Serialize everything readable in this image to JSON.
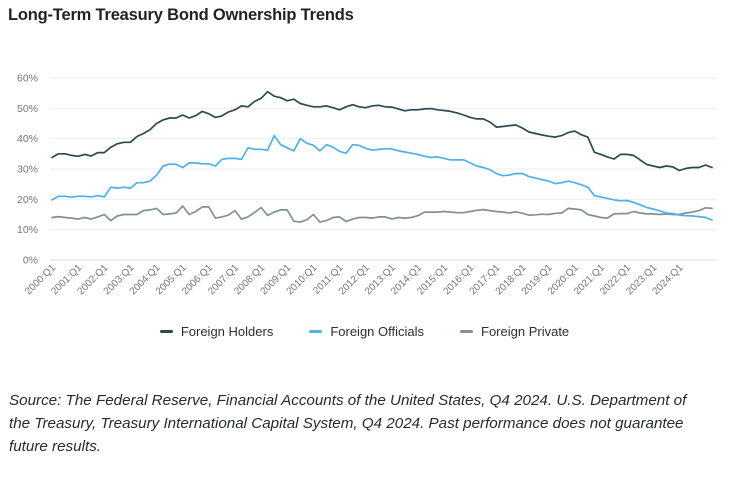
{
  "title": "Long-Term Treasury Bond Ownership Trends",
  "source_note": "Source: The Federal Reserve, Financial Accounts of the United States, Q4 2024. U.S. Department of the Treasury, Treasury International Capital System, Q4 2024. Past performance does not guarantee future results.",
  "chart_data": {
    "type": "line",
    "title": "Long-Term Treasury Bond Ownership Trends",
    "xlabel": "",
    "ylabel": "",
    "ylim": [
      0,
      60
    ],
    "y_ticks": [
      "0%",
      "10%",
      "20%",
      "30%",
      "40%",
      "50%",
      "60%"
    ],
    "x_tick_labels": [
      "2000:Q1",
      "2001:Q1",
      "2002:Q1",
      "2003:Q1",
      "2004:Q1",
      "2005:Q1",
      "2006:Q1",
      "2007:Q1",
      "2008:Q1",
      "2009:Q1",
      "2010:Q1",
      "2011:Q1",
      "2012:Q1",
      "2013:Q1",
      "2014:Q1",
      "2015:Q1",
      "2016:Q1",
      "2017:Q1",
      "2018:Q1",
      "2019:Q1",
      "2020:Q1",
      "2021:Q1",
      "2022:Q1",
      "2023:Q1",
      "2024:Q1"
    ],
    "x_start_year": 2000,
    "grid": "horizontal",
    "legend_position": "bottom",
    "series": [
      {
        "name": "Foreign Holders",
        "color": "#2d4a4f",
        "values": [
          33.8,
          35.0,
          35.0,
          34.5,
          34.2,
          34.8,
          34.3,
          35.4,
          35.4,
          37.2,
          38.3,
          38.8,
          38.8,
          40.7,
          41.7,
          43.0,
          45.0,
          46.2,
          46.8,
          46.8,
          47.8,
          46.8,
          47.6,
          49.0,
          48.2,
          47.0,
          47.5,
          48.8,
          49.5,
          50.8,
          50.5,
          52.3,
          53.3,
          55.5,
          54.0,
          53.5,
          52.5,
          53.0,
          51.6,
          51.0,
          50.5,
          50.5,
          50.8,
          50.2,
          49.5,
          50.5,
          51.2,
          50.5,
          50.2,
          50.8,
          51.0,
          50.5,
          50.4,
          49.8,
          49.2,
          49.5,
          49.5,
          49.8,
          49.9,
          49.5,
          49.3,
          49.0,
          48.5,
          47.8,
          47.0,
          46.5,
          46.5,
          45.5,
          43.8,
          44.0,
          44.3,
          44.5,
          43.5,
          42.2,
          41.7,
          41.2,
          40.8,
          40.5,
          41.0,
          42.0,
          42.5,
          41.3,
          40.5,
          35.5,
          34.8,
          34.0,
          33.3,
          34.8,
          34.8,
          34.5,
          33.0,
          31.5,
          31.0,
          30.5,
          31.0,
          30.7,
          29.5,
          30.2,
          30.5,
          30.5,
          31.3,
          30.5
        ]
      },
      {
        "name": "Foreign Officials",
        "color": "#4fb0ea",
        "values": [
          19.8,
          21.0,
          21.0,
          20.7,
          21.0,
          21.0,
          20.8,
          21.2,
          20.8,
          24.0,
          23.7,
          24.0,
          23.7,
          25.5,
          25.5,
          26.0,
          28.0,
          31.0,
          31.6,
          31.5,
          30.5,
          32.0,
          32.0,
          31.7,
          31.7,
          31.0,
          33.2,
          33.5,
          33.5,
          33.2,
          37.0,
          36.5,
          36.5,
          36.2,
          41.0,
          38.0,
          37.0,
          36.0,
          40.0,
          38.5,
          37.8,
          36.0,
          38.0,
          37.2,
          35.8,
          35.2,
          38.0,
          37.8,
          36.8,
          36.2,
          36.5,
          36.7,
          36.6,
          36.0,
          35.6,
          35.2,
          34.8,
          34.2,
          33.8,
          34.0,
          33.5,
          33.0,
          33.0,
          33.0,
          32.0,
          31.0,
          30.5,
          29.8,
          28.5,
          27.8,
          28.0,
          28.5,
          28.5,
          27.5,
          27.0,
          26.5,
          26.0,
          25.2,
          25.5,
          26.0,
          25.5,
          24.8,
          24.0,
          21.2,
          20.8,
          20.3,
          19.8,
          19.5,
          19.6,
          19.0,
          18.2,
          17.3,
          16.8,
          16.2,
          15.5,
          15.3,
          14.8,
          14.6,
          14.5,
          14.3,
          14.0,
          13.2
        ]
      },
      {
        "name": "Foreign Private",
        "color": "#83918f",
        "values": [
          14.0,
          14.3,
          14.0,
          13.8,
          13.5,
          14.0,
          13.5,
          14.2,
          15.0,
          13.0,
          14.5,
          15.0,
          15.0,
          15.0,
          16.3,
          16.5,
          17.0,
          15.0,
          15.2,
          15.5,
          17.8,
          15.0,
          16.0,
          17.5,
          17.5,
          13.8,
          14.2,
          14.8,
          16.3,
          13.5,
          14.2,
          15.7,
          17.3,
          14.7,
          15.8,
          16.5,
          16.5,
          12.8,
          12.5,
          13.3,
          15.0,
          12.5,
          13.0,
          14.0,
          14.2,
          12.7,
          13.5,
          14.0,
          14.0,
          13.8,
          14.2,
          14.2,
          13.5,
          14.0,
          13.8,
          14.0,
          14.6,
          15.8,
          15.8,
          15.8,
          16.0,
          15.8,
          15.6,
          15.6,
          16.0,
          16.4,
          16.6,
          16.3,
          16.0,
          15.8,
          15.5,
          15.9,
          15.4,
          14.8,
          14.9,
          15.1,
          15.0,
          15.4,
          15.5,
          17.0,
          16.8,
          16.5,
          15.0,
          14.5,
          14.0,
          13.8,
          15.2,
          15.3,
          15.3,
          16.0,
          15.5,
          15.2,
          15.2,
          15.0,
          15.2,
          15.0,
          15.0,
          15.5,
          15.8,
          16.3,
          17.2,
          17.0
        ]
      }
    ]
  }
}
